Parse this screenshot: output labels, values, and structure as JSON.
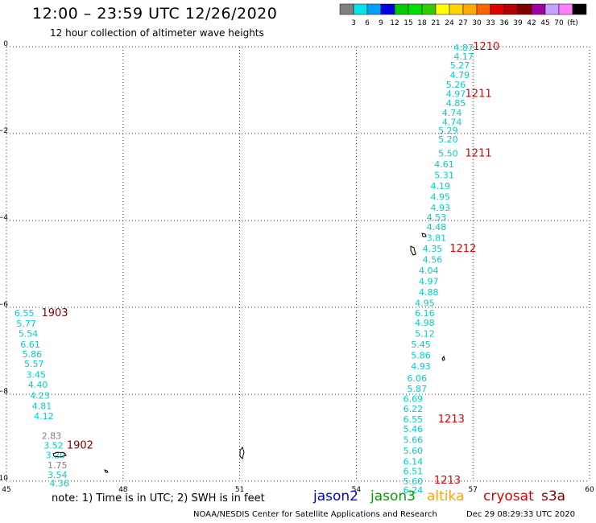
{
  "header": {
    "title": "12:00 – 23:59 UTC 12/26/2020",
    "subtitle": "12 hour collection of altimeter wave heights"
  },
  "colorbar": {
    "colors": [
      "#808080",
      "#00e5e5",
      "#00a0ff",
      "#0000e0",
      "#00cc00",
      "#00e000",
      "#33cc00",
      "#ffff00",
      "#ffd200",
      "#ffaa00",
      "#ff6400",
      "#e00000",
      "#b40000",
      "#800000",
      "#a000a0",
      "#c8a0ff",
      "#ff80ff",
      "#000000"
    ],
    "labels": [
      "3",
      "6",
      "9",
      "12",
      "15",
      "18",
      "21",
      "24",
      "27",
      "30",
      "33",
      "36",
      "39",
      "42",
      "45",
      "70",
      "(ft)"
    ]
  },
  "footer": {
    "note": "note: 1) Time is in UTC; 2) SWH is in feet",
    "credit": "NOAA/NESDIS Center for Satellite Applications and Research",
    "timestamp": "Dec 29 08:29:33 UTC 2020"
  },
  "satellites": [
    {
      "name": "jason2",
      "color": "#0000e0"
    },
    {
      "name": "jason3",
      "color": "#00a000"
    },
    {
      "name": "altika",
      "color": "#ffa500"
    },
    {
      "name": "cryosat",
      "color": "#e00000"
    },
    {
      "name": "s3a",
      "color": "#800000"
    }
  ],
  "chart_data": {
    "type": "scatter",
    "xlim": [
      45,
      60
    ],
    "ylim": [
      -10,
      0
    ],
    "xticks": [
      "45",
      "48",
      "51",
      "54",
      "57",
      "60"
    ],
    "yticks": [
      "0",
      "−2",
      "−4",
      "−6",
      "−8",
      "−10"
    ],
    "grid": true,
    "series": [
      {
        "color": "#00cccc",
        "points": [
          {
            "x": 56.3,
            "y": -0.02,
            "v": "4.87"
          },
          {
            "x": 56.3,
            "y": -0.22,
            "v": "4.17"
          },
          {
            "x": 56.2,
            "y": -0.43,
            "v": "5.27"
          },
          {
            "x": 56.2,
            "y": -0.65,
            "v": "4.79"
          },
          {
            "x": 56.1,
            "y": -0.87,
            "v": "5.26"
          },
          {
            "x": 56.1,
            "y": -1.08,
            "v": "4.97"
          },
          {
            "x": 56.1,
            "y": -1.3,
            "v": "4.85"
          },
          {
            "x": 56.0,
            "y": -1.52,
            "v": "4.74"
          },
          {
            "x": 56.0,
            "y": -1.73,
            "v": "4.74"
          },
          {
            "x": 55.9,
            "y": -1.93,
            "v": "5.29"
          },
          {
            "x": 55.9,
            "y": -2.13,
            "v": "5.20"
          },
          {
            "x": 55.9,
            "y": -2.45,
            "v": "5.50"
          },
          {
            "x": 55.8,
            "y": -2.7,
            "v": "4.61"
          },
          {
            "x": 55.8,
            "y": -2.95,
            "v": "5.31"
          },
          {
            "x": 55.7,
            "y": -3.2,
            "v": "4.19"
          },
          {
            "x": 55.7,
            "y": -3.45,
            "v": "4.95"
          },
          {
            "x": 55.7,
            "y": -3.7,
            "v": "4.93"
          },
          {
            "x": 55.6,
            "y": -3.93,
            "v": "4.53"
          },
          {
            "x": 55.6,
            "y": -4.15,
            "v": "4.48"
          },
          {
            "x": 55.6,
            "y": -4.4,
            "v": "3.81"
          },
          {
            "x": 55.5,
            "y": -4.65,
            "v": "4.35"
          },
          {
            "x": 55.5,
            "y": -4.9,
            "v": "4.56"
          },
          {
            "x": 55.4,
            "y": -5.15,
            "v": "4.04"
          },
          {
            "x": 55.4,
            "y": -5.4,
            "v": "4.97"
          },
          {
            "x": 55.4,
            "y": -5.65,
            "v": "4.88"
          },
          {
            "x": 55.3,
            "y": -5.9,
            "v": "4.95"
          },
          {
            "x": 55.3,
            "y": -6.13,
            "v": "6.16"
          },
          {
            "x": 55.3,
            "y": -6.35,
            "v": "4.98"
          },
          {
            "x": 55.3,
            "y": -6.6,
            "v": "5.12"
          },
          {
            "x": 55.2,
            "y": -6.85,
            "v": "5.45"
          },
          {
            "x": 55.2,
            "y": -7.1,
            "v": "5.86"
          },
          {
            "x": 55.2,
            "y": -7.35,
            "v": "4.93"
          },
          {
            "x": 55.1,
            "y": -7.63,
            "v": "6.06"
          },
          {
            "x": 55.1,
            "y": -7.87,
            "v": "5.87"
          },
          {
            "x": 55.0,
            "y": -8.1,
            "v": "6.69"
          },
          {
            "x": 55.0,
            "y": -8.33,
            "v": "6.22"
          },
          {
            "x": 55.0,
            "y": -8.57,
            "v": "6.55"
          },
          {
            "x": 55.0,
            "y": -8.8,
            "v": "5.46"
          },
          {
            "x": 55.0,
            "y": -9.05,
            "v": "5.66"
          },
          {
            "x": 55.0,
            "y": -9.3,
            "v": "5.60"
          },
          {
            "x": 55.0,
            "y": -9.55,
            "v": "6.14"
          },
          {
            "x": 55.0,
            "y": -9.77,
            "v": "6.51"
          },
          {
            "x": 55.0,
            "y": -10.0,
            "v": "5.60"
          },
          {
            "x": 55.0,
            "y": -10.2,
            "v": "6.24"
          },
          {
            "x": 45.0,
            "y": -6.13,
            "v": "6.55"
          },
          {
            "x": 45.05,
            "y": -6.37,
            "v": "5.77"
          },
          {
            "x": 45.1,
            "y": -6.6,
            "v": "5.54"
          },
          {
            "x": 45.15,
            "y": -6.85,
            "v": "6.61"
          },
          {
            "x": 45.2,
            "y": -7.07,
            "v": "5.86"
          },
          {
            "x": 45.25,
            "y": -7.3,
            "v": "5.57"
          },
          {
            "x": 45.3,
            "y": -7.55,
            "v": "3.45"
          },
          {
            "x": 45.35,
            "y": -7.78,
            "v": "4.40"
          },
          {
            "x": 45.4,
            "y": -8.03,
            "v": "4.23"
          },
          {
            "x": 45.45,
            "y": -8.27,
            "v": "4.81"
          },
          {
            "x": 45.5,
            "y": -8.5,
            "v": "4.12"
          },
          {
            "x": 45.75,
            "y": -9.18,
            "v": "3.52"
          },
          {
            "x": 45.8,
            "y": -9.4,
            "v": "3.20"
          },
          {
            "x": 45.85,
            "y": -9.85,
            "v": "3.54"
          },
          {
            "x": 45.9,
            "y": -10.05,
            "v": "4.36"
          }
        ]
      },
      {
        "color": "#808080",
        "points": [
          {
            "x": 45.7,
            "y": -8.95,
            "v": "2.83"
          },
          {
            "x": 45.85,
            "y": -9.63,
            "v": "1.75"
          }
        ]
      }
    ],
    "annotations": [
      {
        "x": 57.0,
        "y": 0.0,
        "text": "1210",
        "color": "#e00000"
      },
      {
        "x": 56.8,
        "y": -1.08,
        "text": "1211",
        "color": "#e00000"
      },
      {
        "x": 56.8,
        "y": -2.45,
        "text": "1211",
        "color": "#e00000"
      },
      {
        "x": 56.4,
        "y": -4.65,
        "text": "1212",
        "color": "#e00000"
      },
      {
        "x": 56.1,
        "y": -8.57,
        "text": "1213",
        "color": "#e00000"
      },
      {
        "x": 56.0,
        "y": -9.98,
        "text": "1213",
        "color": "#e00000"
      },
      {
        "x": 45.9,
        "y": -6.13,
        "text": "1903",
        "color": "#800000"
      },
      {
        "x": 46.55,
        "y": -9.18,
        "text": "1902",
        "color": "#800000"
      }
    ]
  }
}
